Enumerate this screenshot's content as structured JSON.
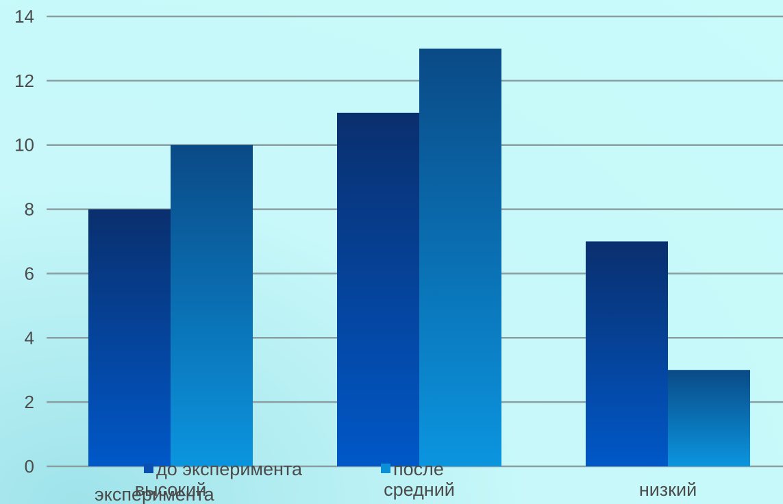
{
  "chart_data": {
    "type": "bar",
    "categories": [
      "высокий",
      "средний",
      "низкий"
    ],
    "series": [
      {
        "name": "до эксперимента",
        "values": [
          8,
          11,
          7
        ]
      },
      {
        "name": "после эксперимента",
        "values": [
          10,
          13,
          3
        ]
      }
    ],
    "title": "",
    "xlabel": "",
    "ylabel": "",
    "ylim": [
      0,
      14
    ],
    "yticks": [
      0,
      2,
      4,
      6,
      8,
      10,
      12,
      14
    ],
    "grid": true,
    "legend_position": "bottom-left",
    "colors": {
      "series_0_top": "#0a2f6e",
      "series_0_bottom": "#0058c8",
      "series_1_top": "#0a4a86",
      "series_1_bottom": "#0b95df",
      "gridline": "#8a9fa2"
    }
  }
}
